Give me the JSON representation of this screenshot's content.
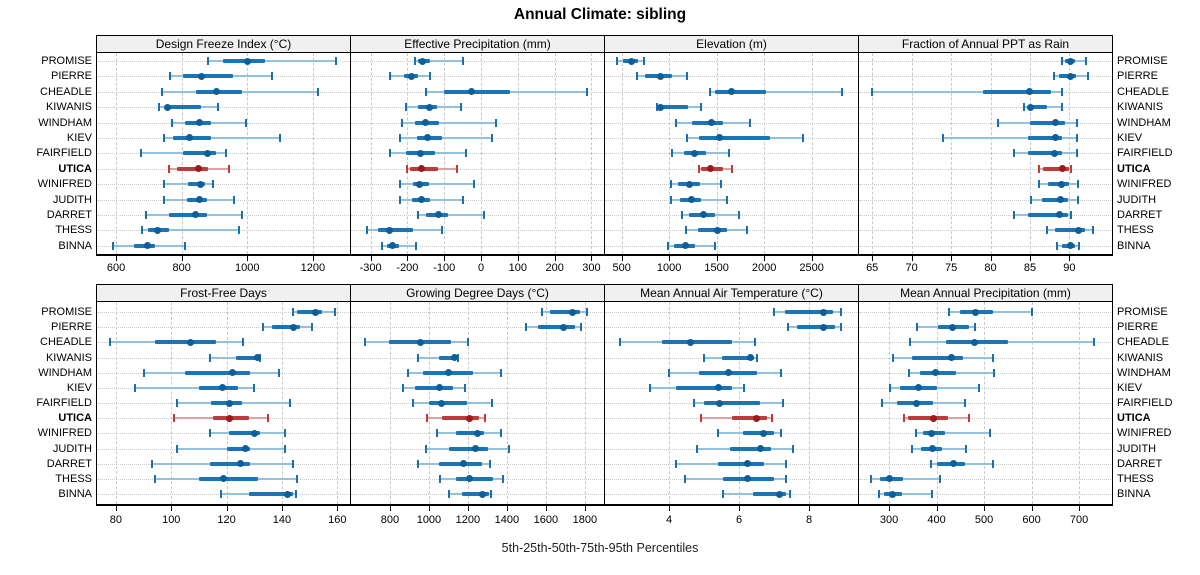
{
  "title": "Annual Climate: sibling",
  "footer_label": "5th-25th-50th-75th-95th Percentiles",
  "sites": [
    "PROMISE",
    "PIERRE",
    "CHEADLE",
    "KIWANIS",
    "WINDHAM",
    "KIEV",
    "FAIRFIELD",
    "UTICA",
    "WINIFRED",
    "JUDITH",
    "DARRET",
    "THESS",
    "BINNA"
  ],
  "highlight_site": "UTICA",
  "percentile_labels": [
    "5th",
    "25th",
    "50th",
    "75th",
    "95th"
  ],
  "colors": {
    "normal": {
      "range": "#94c1de",
      "cap": "#1b6fae",
      "band": "#1b74b5",
      "dot": "#0e5e97"
    },
    "highlight": {
      "range": "#dda3a3",
      "cap": "#bf3b3b",
      "band": "#bf3b3b",
      "dot": "#991b1b"
    },
    "grid": "#c9c9c9",
    "header_bg": "#f0f0f0",
    "border": "#000000"
  },
  "chart_data": {
    "type": "dot-whisker",
    "note": "values are [5th,25th,50th,75th,95th] percentiles per site, sites order matches top-level sites list",
    "panels": [
      {
        "title": "Design Freeze Index (°C)",
        "row": 0,
        "col": 0,
        "x_range": [
          539,
          1313
        ],
        "x_ticks": [
          600,
          800,
          1000,
          1200
        ],
        "values": [
          [
            880,
            925,
            1000,
            1055,
            1270
          ],
          [
            765,
            805,
            860,
            955,
            1075
          ],
          [
            740,
            845,
            905,
            985,
            1215
          ],
          [
            730,
            748,
            758,
            860,
            912
          ],
          [
            770,
            810,
            855,
            890,
            995
          ],
          [
            745,
            775,
            825,
            890,
            1100
          ],
          [
            675,
            805,
            880,
            905,
            935
          ],
          [
            760,
            785,
            850,
            880,
            945
          ],
          [
            745,
            820,
            857,
            872,
            895
          ],
          [
            745,
            815,
            855,
            878,
            960
          ],
          [
            690,
            760,
            843,
            878,
            985
          ],
          [
            680,
            697,
            727,
            762,
            975
          ],
          [
            590,
            655,
            695,
            718,
            810
          ]
        ]
      },
      {
        "title": "Effective Precipitation (mm)",
        "row": 0,
        "col": 1,
        "x_range": [
          -356,
          334
        ],
        "x_ticks": [
          -300,
          -200,
          -100,
          0,
          100,
          200,
          300
        ],
        "values": [
          [
            -180,
            -170,
            -160,
            -140,
            -50
          ],
          [
            -247,
            -210,
            -190,
            -170,
            -140
          ],
          [
            -150,
            -100,
            -25,
            78,
            288
          ],
          [
            -205,
            -170,
            -140,
            -120,
            -55
          ],
          [
            -215,
            -180,
            -150,
            -115,
            40
          ],
          [
            -220,
            -175,
            -145,
            -105,
            30
          ],
          [
            -247,
            -205,
            -165,
            -125,
            -40
          ],
          [
            -200,
            -192,
            -162,
            -116,
            -65
          ],
          [
            -220,
            -185,
            -168,
            -142,
            -20
          ],
          [
            -220,
            -188,
            -163,
            -139,
            -50
          ],
          [
            -170,
            -150,
            -116,
            -90,
            8
          ],
          [
            -310,
            -280,
            -248,
            -185,
            -105
          ],
          [
            -268,
            -255,
            -240,
            -222,
            -178
          ]
        ]
      },
      {
        "title": "Elevation (m)",
        "row": 0,
        "col": 2,
        "x_range": [
          314,
          2988
        ],
        "x_ticks": [
          500,
          1000,
          1500,
          2000,
          2500
        ],
        "values": [
          [
            455,
            510,
            600,
            670,
            730
          ],
          [
            660,
            745,
            910,
            1025,
            1190
          ],
          [
            1435,
            1480,
            1655,
            2015,
            2815
          ],
          [
            870,
            890,
            910,
            1200,
            1335
          ],
          [
            1070,
            1245,
            1445,
            1565,
            1850
          ],
          [
            1185,
            1315,
            1530,
            2065,
            2405
          ],
          [
            1035,
            1160,
            1270,
            1390,
            1630
          ],
          [
            1315,
            1330,
            1430,
            1570,
            1660
          ],
          [
            1020,
            1095,
            1210,
            1325,
            1550
          ],
          [
            1015,
            1115,
            1235,
            1330,
            1610
          ],
          [
            1140,
            1210,
            1360,
            1480,
            1730
          ],
          [
            1175,
            1305,
            1510,
            1610,
            1820
          ],
          [
            990,
            1050,
            1175,
            1270,
            1480
          ]
        ]
      },
      {
        "title": "Fraction of Annual PPT as Rain",
        "row": 0,
        "col": 3,
        "x_range": [
          63.2,
          95.4
        ],
        "x_ticks": [
          65,
          70,
          75,
          80,
          85,
          90
        ],
        "values": [
          [
            89,
            89.5,
            90.1,
            90.7,
            92.1
          ],
          [
            88,
            88.7,
            90.1,
            90.9,
            92.3
          ],
          [
            65,
            79,
            85,
            87.7,
            89
          ],
          [
            84.3,
            84.7,
            85.1,
            87.2,
            89
          ],
          [
            81,
            85,
            88.2,
            89.4,
            91
          ],
          [
            74,
            84.7,
            88.2,
            89.1,
            91
          ],
          [
            83,
            84.7,
            88.1,
            89,
            90.9
          ],
          [
            86.2,
            86.7,
            89.1,
            89.9,
            90.2
          ],
          [
            86.2,
            87.3,
            89,
            89.9,
            91.1
          ],
          [
            85.1,
            86.5,
            88.9,
            89.8,
            91.1
          ],
          [
            83,
            84.7,
            88.8,
            89.8,
            90.2
          ],
          [
            87.2,
            88.2,
            91.2,
            92,
            93
          ],
          [
            88.4,
            89,
            90.1,
            90.7,
            91.2
          ]
        ]
      },
      {
        "title": "Frost-Free Days",
        "row": 1,
        "col": 0,
        "x_range": [
          72.8,
          164.6
        ],
        "x_ticks": [
          80,
          100,
          120,
          140,
          160
        ],
        "values": [
          [
            144,
            145.5,
            152,
            154.5,
            159
          ],
          [
            133,
            136.5,
            144,
            146.5,
            151
          ],
          [
            78,
            94,
            107,
            116,
            126
          ],
          [
            114,
            123.5,
            131,
            131.5,
            132
          ],
          [
            90,
            105,
            122,
            128.5,
            139
          ],
          [
            87,
            110,
            118.5,
            124,
            130
          ],
          [
            102,
            114.5,
            121,
            125.5,
            143
          ],
          [
            101,
            115,
            121,
            128,
            135
          ],
          [
            114,
            121,
            130,
            132,
            141
          ],
          [
            102,
            120,
            127,
            128.5,
            141
          ],
          [
            93,
            114,
            125,
            128.5,
            144
          ],
          [
            94,
            110,
            119,
            131.5,
            145.5
          ],
          [
            118,
            128,
            142,
            144,
            145
          ]
        ]
      },
      {
        "title": "Growing Degree Days (°C)",
        "row": 1,
        "col": 1,
        "x_range": [
          595,
          1898
        ],
        "x_ticks": [
          800,
          1000,
          1200,
          1400,
          1600,
          1800
        ],
        "values": [
          [
            1580,
            1620,
            1737,
            1775,
            1810
          ],
          [
            1500,
            1560,
            1690,
            1750,
            1780
          ],
          [
            670,
            795,
            955,
            1115,
            1200
          ],
          [
            945,
            1050,
            1130,
            1140,
            1148
          ],
          [
            890,
            970,
            1100,
            1225,
            1370
          ],
          [
            865,
            930,
            1053,
            1125,
            1185
          ],
          [
            920,
            1000,
            1065,
            1195,
            1325
          ],
          [
            990,
            1065,
            1207,
            1255,
            1290
          ],
          [
            1040,
            1140,
            1250,
            1280,
            1370
          ],
          [
            985,
            1105,
            1240,
            1305,
            1410
          ],
          [
            945,
            1053,
            1176,
            1270,
            1313
          ],
          [
            1055,
            1140,
            1210,
            1330,
            1378
          ],
          [
            1105,
            1170,
            1275,
            1310,
            1320
          ]
        ]
      },
      {
        "title": "Mean Annual Air Temperature (°C)",
        "row": 1,
        "col": 2,
        "x_range": [
          2.14,
          9.4
        ],
        "x_ticks": [
          4,
          6,
          8
        ],
        "values": [
          [
            7.0,
            7.3,
            8.4,
            8.7,
            8.9
          ],
          [
            7.4,
            7.65,
            8.4,
            8.75,
            8.9
          ],
          [
            2.6,
            3.8,
            4.6,
            5.8,
            6.45
          ],
          [
            5.0,
            5.5,
            6.33,
            6.42,
            6.5
          ],
          [
            4.0,
            4.85,
            5.7,
            6.5,
            7.2
          ],
          [
            3.45,
            4.2,
            5.4,
            5.8,
            6.15
          ],
          [
            4.7,
            5.0,
            5.45,
            6.6,
            7.25
          ],
          [
            4.9,
            5.8,
            6.5,
            6.8,
            6.95
          ],
          [
            5.4,
            6.1,
            6.7,
            7.0,
            7.2
          ],
          [
            4.8,
            5.75,
            6.6,
            6.9,
            7.55
          ],
          [
            4.2,
            5.4,
            6.25,
            6.7,
            7.35
          ],
          [
            4.45,
            5.55,
            6.25,
            7.0,
            7.35
          ],
          [
            5.55,
            6.4,
            7.15,
            7.35,
            7.45
          ]
        ]
      },
      {
        "title": "Mean Annual Precipitation (mm)",
        "row": 1,
        "col": 3,
        "x_range": [
          234.7,
          769.4
        ],
        "x_ticks": [
          300,
          400,
          500,
          600,
          700
        ],
        "values": [
          [
            426,
            449,
            481,
            519,
            602
          ],
          [
            358,
            404,
            434,
            469,
            481
          ],
          [
            344,
            421,
            480,
            551,
            732
          ],
          [
            309,
            348,
            432,
            455,
            519
          ],
          [
            342,
            365,
            397,
            440,
            520
          ],
          [
            302,
            323,
            362,
            402,
            490
          ],
          [
            285,
            316,
            358,
            393,
            460
          ],
          [
            332,
            341,
            393,
            424,
            469
          ],
          [
            357,
            372,
            390,
            417,
            512
          ],
          [
            348,
            368,
            392,
            412,
            462
          ],
          [
            388,
            400,
            435,
            460,
            518
          ],
          [
            262,
            281,
            302,
            330,
            407
          ],
          [
            279,
            290,
            307,
            327,
            391
          ]
        ]
      }
    ]
  }
}
